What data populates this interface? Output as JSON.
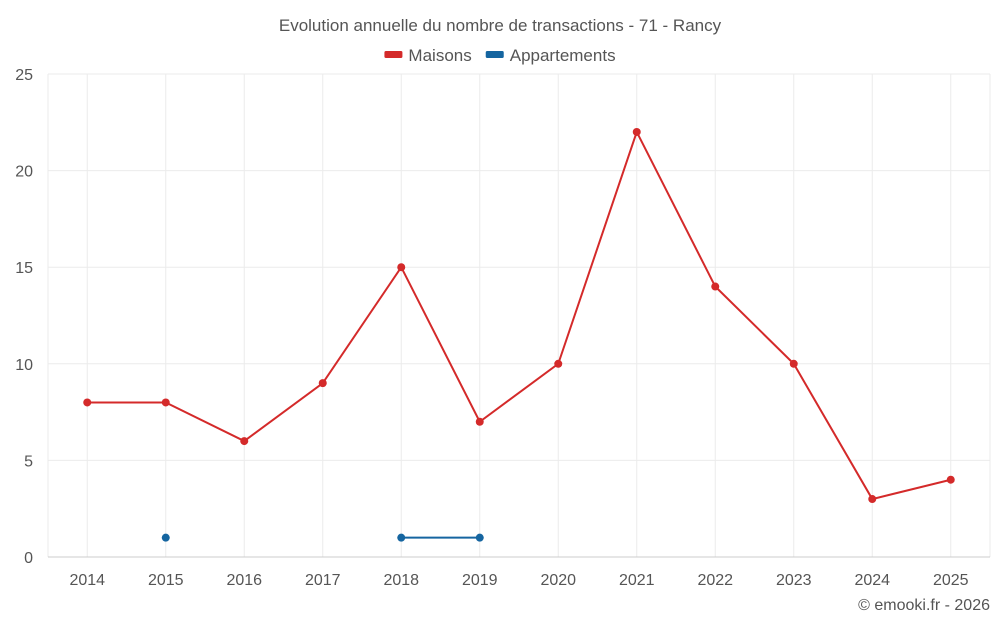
{
  "chart_data": {
    "type": "line",
    "title": "Evolution annuelle du nombre de transactions - 71 - Rancy",
    "categories": [
      "2014",
      "2015",
      "2016",
      "2017",
      "2018",
      "2019",
      "2020",
      "2021",
      "2022",
      "2023",
      "2024",
      "2025"
    ],
    "ylim": [
      0,
      25
    ],
    "yticks": [
      0,
      5,
      10,
      15,
      20,
      25
    ],
    "grid": true,
    "legend_position": "top-center",
    "xlabel": "",
    "ylabel": "",
    "series": [
      {
        "name": "Maisons",
        "color": "#d42a2a",
        "values": [
          8,
          8,
          6,
          9,
          15,
          7,
          10,
          22,
          14,
          10,
          3,
          4
        ]
      },
      {
        "name": "Appartements",
        "color": "#1565a0",
        "values": [
          null,
          1,
          null,
          null,
          1,
          1,
          null,
          null,
          null,
          null,
          null,
          null
        ]
      }
    ]
  },
  "credit": "© emooki.fr - 2026"
}
